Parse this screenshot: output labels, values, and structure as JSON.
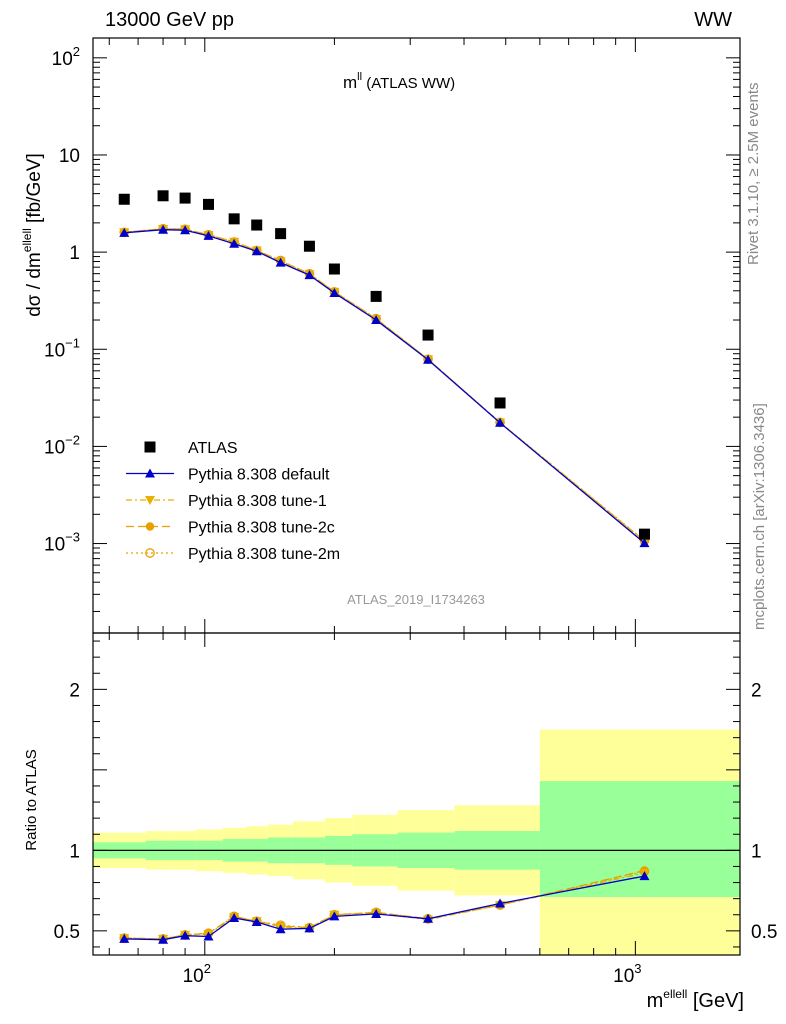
{
  "header": {
    "left": "13000 GeV pp",
    "right": "WW"
  },
  "side_labels": {
    "top": "Rivet 3.1.10, ≥ 2.5M events",
    "bottom": "mcplots.cern.ch [arXiv:1306.3436]"
  },
  "chart_data": [
    {
      "type": "scatter",
      "title_main": "m",
      "title_sup": "ll",
      "title_rest": " (ATLAS WW)",
      "analysis_label": "ATLAS_2019_I1734263",
      "ylabel_main": "dσ / dm",
      "ylabel_sup": "ellell",
      "ylabel_rest": " [fb/GeV]",
      "xlabel_main": "m",
      "xlabel_sup": "ellell",
      "xlabel_rest": " [GeV]",
      "xscale": "log",
      "yscale": "log",
      "xlim": [
        55,
        1750
      ],
      "ylim": [
        0.00012,
        160
      ],
      "y_ticks": [
        {
          "value": 100,
          "base": "10",
          "exp": "2"
        },
        {
          "value": 10,
          "base": "10",
          "exp": ""
        },
        {
          "value": 1,
          "base": "1",
          "exp": ""
        },
        {
          "value": 0.1,
          "base": "10",
          "exp": "−1"
        },
        {
          "value": 0.01,
          "base": "10",
          "exp": "−2"
        },
        {
          "value": 0.001,
          "base": "10",
          "exp": "−3"
        }
      ],
      "legend_position": "bottom-left",
      "x": [
        65,
        80,
        90,
        102,
        117,
        132,
        150,
        175,
        200,
        250,
        330,
        485,
        1050
      ],
      "series": [
        {
          "name": "ATLAS",
          "color": "#000000",
          "marker": "square",
          "values": [
            3.5,
            3.8,
            3.6,
            3.1,
            2.2,
            1.9,
            1.55,
            1.15,
            0.67,
            0.35,
            0.14,
            0.028,
            0.00125
          ]
        },
        {
          "name": "Pythia 8.308 default",
          "color": "#0000cc",
          "marker": "triangle-up",
          "line": "solid",
          "values": [
            1.58,
            1.7,
            1.68,
            1.47,
            1.22,
            1.02,
            0.78,
            0.58,
            0.38,
            0.2,
            0.078,
            0.0175,
            0.00101
          ]
        },
        {
          "name": "Pythia 8.308 tune-1",
          "color": "#e8b000",
          "marker": "triangle-down",
          "line": "dashdot",
          "values": [
            1.6,
            1.73,
            1.72,
            1.5,
            1.28,
            1.04,
            0.8,
            0.59,
            0.39,
            0.205,
            0.079,
            0.0176,
            0.00106
          ]
        },
        {
          "name": "Pythia 8.308 tune-2c",
          "color": "#e8a000",
          "marker": "circle",
          "line": "dashed",
          "values": [
            1.6,
            1.74,
            1.72,
            1.51,
            1.27,
            1.05,
            0.81,
            0.6,
            0.39,
            0.207,
            0.079,
            0.0176,
            0.00106
          ]
        },
        {
          "name": "Pythia 8.308 tune-2m",
          "color": "#e8a000",
          "marker": "open-circle",
          "line": "dotted",
          "values": [
            1.6,
            1.74,
            1.72,
            1.51,
            1.27,
            1.04,
            0.82,
            0.6,
            0.39,
            0.207,
            0.079,
            0.0177,
            0.00107
          ]
        }
      ]
    },
    {
      "type": "scatter",
      "ylabel": "Ratio to ATLAS",
      "xscale": "log",
      "xlim": [
        55,
        1750
      ],
      "ylim": [
        0.35,
        2.35
      ],
      "y_ticks": [
        "0.5",
        "1",
        "2"
      ],
      "x_ticks": [
        {
          "value": 100,
          "base": "10",
          "exp": "2"
        },
        {
          "value": 1000,
          "base": "10",
          "exp": "3"
        }
      ],
      "uncertainty_bands": {
        "bin_edges": [
          55,
          73,
          85,
          95,
          110,
          125,
          140,
          160,
          190,
          220,
          280,
          380,
          600,
          1750
        ],
        "stat_low": [
          0.95,
          0.94,
          0.94,
          0.94,
          0.93,
          0.93,
          0.92,
          0.92,
          0.91,
          0.9,
          0.89,
          0.88,
          0.71
        ],
        "stat_high": [
          1.05,
          1.06,
          1.06,
          1.06,
          1.07,
          1.07,
          1.08,
          1.08,
          1.09,
          1.1,
          1.11,
          1.12,
          1.43
        ],
        "total_low": [
          0.89,
          0.88,
          0.88,
          0.87,
          0.86,
          0.85,
          0.84,
          0.82,
          0.8,
          0.78,
          0.75,
          0.72,
          0.35
        ],
        "total_high": [
          1.11,
          1.12,
          1.12,
          1.13,
          1.14,
          1.15,
          1.16,
          1.18,
          1.2,
          1.22,
          1.25,
          1.28,
          1.75
        ],
        "stat_color": "#99ff99",
        "total_color": "#ffff99"
      },
      "x": [
        65,
        80,
        90,
        102,
        117,
        132,
        150,
        175,
        200,
        250,
        330,
        485,
        1050
      ],
      "series": [
        {
          "name": "Pythia 8.308 default",
          "color": "#0000cc",
          "marker": "triangle-up",
          "line": "solid",
          "values": [
            0.45,
            0.445,
            0.47,
            0.465,
            0.58,
            0.555,
            0.51,
            0.515,
            0.59,
            0.605,
            0.575,
            0.67,
            0.84
          ]
        },
        {
          "name": "Pythia 8.308 tune-1",
          "color": "#e8b000",
          "marker": "triangle-down",
          "line": "dashdot",
          "values": [
            0.455,
            0.45,
            0.475,
            0.48,
            0.585,
            0.56,
            0.525,
            0.515,
            0.6,
            0.61,
            0.57,
            0.66,
            0.86
          ]
        },
        {
          "name": "Pythia 8.308 tune-2c",
          "color": "#e8a000",
          "marker": "circle",
          "line": "dashed",
          "values": [
            0.455,
            0.45,
            0.475,
            0.485,
            0.59,
            0.56,
            0.53,
            0.52,
            0.6,
            0.615,
            0.575,
            0.66,
            0.875
          ]
        },
        {
          "name": "Pythia 8.308 tune-2m",
          "color": "#e8a000",
          "marker": "open-circle",
          "line": "dotted",
          "values": [
            0.455,
            0.45,
            0.475,
            0.485,
            0.59,
            0.56,
            0.535,
            0.52,
            0.6,
            0.615,
            0.575,
            0.66,
            0.87
          ]
        }
      ]
    }
  ]
}
